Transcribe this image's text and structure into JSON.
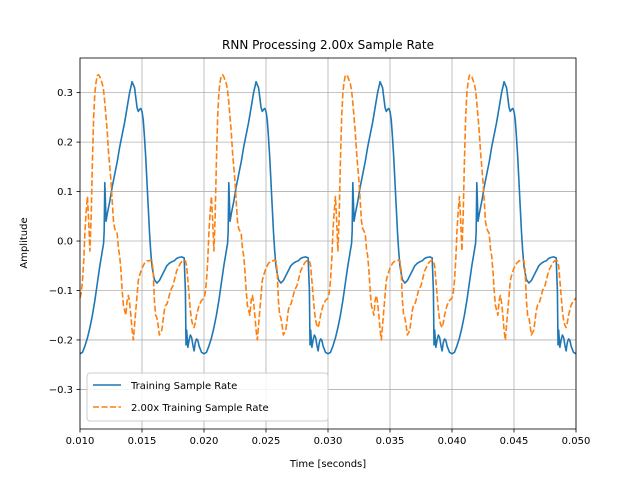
{
  "chart_data": {
    "type": "line",
    "title": "RNN Processing 2.00x Sample Rate",
    "xlabel": "Time [seconds]",
    "ylabel": "Amplitude",
    "xlim": [
      0.01,
      0.05
    ],
    "ylim": [
      -0.38,
      0.37
    ],
    "xticks": [
      0.01,
      0.015,
      0.02,
      0.025,
      0.03,
      0.035,
      0.04,
      0.045,
      0.05
    ],
    "xtick_labels": [
      "0.010",
      "0.015",
      "0.020",
      "0.025",
      "0.030",
      "0.035",
      "0.040",
      "0.045",
      "0.050"
    ],
    "yticks": [
      -0.3,
      -0.2,
      -0.1,
      0.0,
      0.1,
      0.2,
      0.3
    ],
    "ytick_labels": [
      "−0.3",
      "−0.2",
      "−0.1",
      "0.0",
      "0.1",
      "0.2",
      "0.3"
    ],
    "grid": true,
    "legend_position": "lower-left",
    "period": 0.01,
    "series": [
      {
        "name": "Training Sample Rate",
        "color": "#1f77b4",
        "style": "solid",
        "x": [
          0.01,
          0.0102,
          0.0104,
          0.0106,
          0.0108,
          0.011,
          0.0112,
          0.0114,
          0.0116,
          0.0118,
          0.0119,
          0.01195,
          0.012,
          0.01205,
          0.0121,
          0.0122,
          0.0124,
          0.0126,
          0.0128,
          0.013,
          0.0132,
          0.0134,
          0.0136,
          0.0138,
          0.014,
          0.0142,
          0.0144,
          0.0146,
          0.0147,
          0.0148,
          0.0149,
          0.015,
          0.0151,
          0.0152,
          0.0153,
          0.0154,
          0.0155,
          0.0156,
          0.0157,
          0.0158,
          0.0159,
          0.016,
          0.0162,
          0.0164,
          0.0166,
          0.0168,
          0.017,
          0.0172,
          0.0174,
          0.0176,
          0.0178,
          0.018,
          0.0182,
          0.0184,
          0.0185,
          0.01855,
          0.0186,
          0.0187,
          0.0188,
          0.0189,
          0.019,
          0.0191,
          0.0192,
          0.0193,
          0.0194,
          0.0195,
          0.0196,
          0.0198,
          0.02
        ],
        "y": [
          -0.228,
          -0.225,
          -0.212,
          -0.196,
          -0.175,
          -0.15,
          -0.12,
          -0.085,
          -0.05,
          -0.02,
          -0.005,
          0.02,
          0.118,
          0.08,
          0.04,
          0.055,
          0.08,
          0.11,
          0.135,
          0.16,
          0.19,
          0.215,
          0.24,
          0.27,
          0.3,
          0.322,
          0.31,
          0.27,
          0.262,
          0.266,
          0.268,
          0.262,
          0.245,
          0.21,
          0.17,
          0.12,
          0.07,
          0.02,
          -0.02,
          -0.05,
          -0.065,
          -0.078,
          -0.085,
          -0.08,
          -0.07,
          -0.06,
          -0.05,
          -0.045,
          -0.042,
          -0.04,
          -0.035,
          -0.033,
          -0.032,
          -0.034,
          -0.1,
          -0.21,
          -0.18,
          -0.215,
          -0.2,
          -0.19,
          -0.195,
          -0.21,
          -0.222,
          -0.205,
          -0.198,
          -0.2,
          -0.212,
          -0.225,
          -0.228
        ]
      },
      {
        "name": "2.00x Training Sample Rate",
        "color": "#ff7f0e",
        "style": "dashed",
        "x": [
          0.01,
          0.0101,
          0.0102,
          0.0103,
          0.0104,
          0.0105,
          0.0106,
          0.0107,
          0.0108,
          0.0109,
          0.011,
          0.0111,
          0.0112,
          0.0113,
          0.0114,
          0.0115,
          0.0116,
          0.0117,
          0.0118,
          0.0119,
          0.012,
          0.0121,
          0.0122,
          0.0123,
          0.0124,
          0.0125,
          0.0126,
          0.0127,
          0.0128,
          0.0129,
          0.013,
          0.0131,
          0.0132,
          0.0133,
          0.0134,
          0.0135,
          0.0136,
          0.0137,
          0.0138,
          0.0139,
          0.014,
          0.0141,
          0.0142,
          0.0143,
          0.0144,
          0.0145,
          0.0146,
          0.0147,
          0.0148,
          0.0149,
          0.015,
          0.0151,
          0.0152,
          0.0153,
          0.0154,
          0.0155,
          0.0156,
          0.0157,
          0.0158,
          0.0159,
          0.016,
          0.0161,
          0.0162,
          0.0163,
          0.0164,
          0.0165,
          0.0166,
          0.0167,
          0.0168,
          0.0169,
          0.017,
          0.0171,
          0.0172,
          0.0173,
          0.0174,
          0.0175,
          0.0176,
          0.0177,
          0.0178,
          0.0179,
          0.018,
          0.0181,
          0.0182,
          0.0183,
          0.0184,
          0.0185,
          0.0186,
          0.0187,
          0.0188,
          0.0189,
          0.019,
          0.0191,
          0.0192,
          0.0193,
          0.0194,
          0.0195,
          0.0196,
          0.0197,
          0.0198,
          0.0199,
          0.02
        ],
        "y": [
          -0.115,
          -0.105,
          -0.08,
          -0.04,
          0.02,
          0.06,
          0.09,
          0.04,
          -0.02,
          0.05,
          0.16,
          0.25,
          0.3,
          0.322,
          0.335,
          0.336,
          0.332,
          0.325,
          0.318,
          0.305,
          0.28,
          0.25,
          0.22,
          0.18,
          0.15,
          0.12,
          0.08,
          0.04,
          0.025,
          0.02,
          0.015,
          -0.015,
          -0.03,
          -0.06,
          -0.1,
          -0.13,
          -0.14,
          -0.15,
          -0.12,
          -0.11,
          -0.125,
          -0.15,
          -0.18,
          -0.2,
          -0.17,
          -0.14,
          -0.11,
          -0.08,
          -0.07,
          -0.062,
          -0.055,
          -0.05,
          -0.045,
          -0.043,
          -0.04,
          -0.04,
          -0.04,
          -0.038,
          -0.04,
          -0.06,
          -0.12,
          -0.15,
          -0.155,
          -0.17,
          -0.19,
          -0.185,
          -0.18,
          -0.16,
          -0.14,
          -0.13,
          -0.128,
          -0.12,
          -0.11,
          -0.1,
          -0.095,
          -0.09,
          -0.08,
          -0.07,
          -0.06,
          -0.055,
          -0.05,
          -0.045,
          -0.042,
          -0.04,
          -0.039,
          -0.04,
          -0.05,
          -0.08,
          -0.11,
          -0.14,
          -0.16,
          -0.17,
          -0.175,
          -0.165,
          -0.15,
          -0.14,
          -0.13,
          -0.125,
          -0.12,
          -0.118,
          -0.115
        ]
      }
    ]
  }
}
